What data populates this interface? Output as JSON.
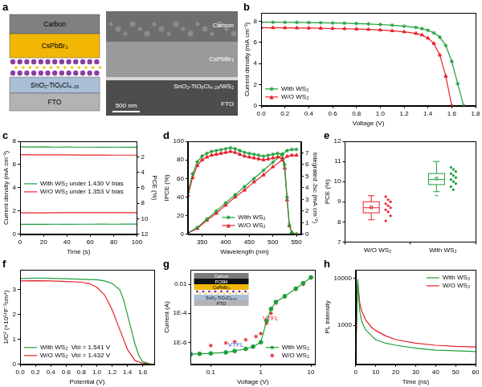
{
  "diagram": {
    "label": "a",
    "schematic_layers": [
      "Carbon",
      "CsPbBr₃",
      "SnO₂-TiOₓCl₄₋₂ₓ",
      "FTO"
    ],
    "sem_layers": [
      "Carbon",
      "CsPbBr₃",
      "SnO₂-TiOₓCl₄₋₂ₓ/WS₂",
      "FTO"
    ],
    "scale_bar": "500 nm"
  },
  "chart_data": [
    {
      "label": "b",
      "type": "line",
      "x_label": "Voltage (V)",
      "y_label": "Current density (mA cm⁻²)",
      "xlim": [
        0,
        1.8
      ],
      "xticks": [
        {
          "value": 0,
          "label": "0.0"
        },
        {
          "value": 0.2,
          "label": "0.2"
        },
        {
          "value": 0.4,
          "label": "0.4"
        },
        {
          "value": 0.6,
          "label": "0.6"
        },
        {
          "value": 0.8,
          "label": "0.8"
        },
        {
          "value": 1.0,
          "label": "1.0"
        },
        {
          "value": 1.2,
          "label": "1.2"
        },
        {
          "value": 1.4,
          "label": "1.4"
        },
        {
          "value": 1.6,
          "label": "1.6"
        },
        {
          "value": 1.8,
          "label": "1.8"
        }
      ],
      "ylim": [
        0,
        8.8
      ],
      "yticks": [
        0,
        2,
        4,
        6,
        8
      ],
      "grid": false,
      "legend": "lower left",
      "series": [
        {
          "name": "With WS₂",
          "color": "#1e9e3a",
          "marker": "star",
          "line_style": "solid",
          "x": [
            0,
            0.1,
            0.2,
            0.3,
            0.4,
            0.5,
            0.6,
            0.7,
            0.8,
            0.9,
            1.0,
            1.1,
            1.2,
            1.3,
            1.35,
            1.4,
            1.45,
            1.5,
            1.55,
            1.6,
            1.65,
            1.7
          ],
          "values": [
            7.92,
            7.91,
            7.9,
            7.89,
            7.88,
            7.86,
            7.84,
            7.82,
            7.79,
            7.75,
            7.7,
            7.63,
            7.54,
            7.42,
            7.3,
            7.15,
            6.9,
            6.5,
            5.7,
            4.2,
            2.1,
            0.0
          ]
        },
        {
          "name": "W/O WS₂",
          "color": "#e8202a",
          "marker": "triangle",
          "line_style": "solid",
          "x": [
            0,
            0.1,
            0.2,
            0.3,
            0.4,
            0.5,
            0.6,
            0.7,
            0.8,
            0.9,
            1.0,
            1.1,
            1.2,
            1.3,
            1.35,
            1.4,
            1.45,
            1.5,
            1.55,
            1.6
          ],
          "values": [
            7.4,
            7.39,
            7.38,
            7.37,
            7.36,
            7.34,
            7.32,
            7.3,
            7.27,
            7.23,
            7.18,
            7.1,
            7.0,
            6.85,
            6.7,
            6.4,
            5.9,
            4.8,
            2.8,
            0.0
          ]
        }
      ]
    },
    {
      "label": "c",
      "type": "line",
      "x_label": "Time (s)",
      "y_label": "Current density (mA cm⁻²)",
      "y2_label": "PCE (%)",
      "x": [
        0,
        10,
        20,
        30,
        40,
        50,
        60,
        70,
        80,
        90,
        100
      ],
      "xlim": [
        0,
        100
      ],
      "xticks": [
        0,
        20,
        40,
        60,
        80,
        100
      ],
      "ylim": [
        0,
        8
      ],
      "yticks": [
        0,
        2,
        4,
        6,
        8
      ],
      "y2lim": [
        12,
        0
      ],
      "y2ticks": [
        2,
        4,
        6,
        8,
        10,
        12
      ],
      "grid": false,
      "legend": "center left",
      "series": [
        {
          "name": "With WS₂ under 1.430 V bias",
          "color": "#1e9e3a",
          "line_style": "solid",
          "marker": "none",
          "values": [
            7.52,
            7.51,
            7.52,
            7.5,
            7.51,
            7.5,
            7.5,
            7.49,
            7.5,
            7.49,
            7.49
          ]
        },
        {
          "name": "W/O WS₂ under 1.353 V bias",
          "color": "#e8202a",
          "line_style": "solid",
          "marker": "none",
          "values": [
            6.85,
            6.84,
            6.84,
            6.83,
            6.83,
            6.82,
            6.82,
            6.82,
            6.81,
            6.81,
            6.81
          ]
        },
        {
          "name": "With WS₂ under 1.430 V bias",
          "color": "#1e9e3a",
          "line_style": "solid",
          "marker": "none",
          "axis": "y2",
          "values": [
            10.72,
            10.71,
            10.72,
            10.7,
            10.71,
            10.7,
            10.7,
            10.69,
            10.7,
            10.69,
            10.69
          ]
        },
        {
          "name": "W/O WS₂ under 1.353 V bias",
          "color": "#e8202a",
          "line_style": "solid",
          "marker": "none",
          "axis": "y2",
          "values": [
            9.24,
            9.23,
            9.23,
            9.22,
            9.22,
            9.21,
            9.21,
            9.21,
            9.2,
            9.2,
            9.2
          ]
        }
      ]
    },
    {
      "label": "d",
      "type": "line",
      "x_label": "Wavelength (nm)",
      "y_label": "IPCE (%)",
      "y2_label": "Integrated Jsc (mA cm⁻²)",
      "xlim": [
        320,
        560
      ],
      "xticks": [
        350,
        400,
        450,
        500,
        550
      ],
      "ylim": [
        0,
        100
      ],
      "yticks": [
        0,
        20,
        40,
        60,
        80,
        100
      ],
      "y2lim": [
        0,
        8
      ],
      "y2ticks": [
        0,
        1,
        2,
        3,
        4,
        5,
        6,
        7
      ],
      "grid": false,
      "legend": "lower center",
      "series": [
        {
          "name": "With WS₂",
          "color": "#1e9e3a",
          "marker": "star",
          "line_style": "solid",
          "x": [
            320,
            330,
            340,
            350,
            360,
            370,
            380,
            390,
            400,
            410,
            420,
            430,
            440,
            450,
            460,
            470,
            480,
            490,
            500,
            510,
            520,
            525,
            530,
            535,
            540,
            550
          ],
          "values": [
            45,
            65,
            78,
            84,
            87,
            89,
            90,
            91,
            92,
            93,
            92,
            90,
            88,
            87,
            86,
            85,
            84,
            85,
            86,
            87,
            86,
            75,
            40,
            10,
            2,
            0
          ]
        },
        {
          "name": "W/O WS₂",
          "color": "#e8202a",
          "marker": "triangle",
          "line_style": "solid",
          "x": [
            320,
            330,
            340,
            350,
            360,
            370,
            380,
            390,
            400,
            410,
            420,
            430,
            440,
            450,
            460,
            470,
            480,
            490,
            500,
            510,
            520,
            525,
            530,
            535,
            540,
            550
          ],
          "values": [
            42,
            61,
            74,
            80,
            83,
            85,
            86,
            87,
            88,
            89,
            88,
            86,
            84,
            83,
            82,
            81,
            80,
            81,
            82,
            83,
            82,
            71,
            37,
            9,
            2,
            0
          ]
        },
        {
          "name": "With WS₂",
          "color": "#1e9e3a",
          "marker": "star",
          "line_style": "solid",
          "axis": "y2",
          "x": [
            320,
            340,
            360,
            380,
            400,
            420,
            440,
            460,
            480,
            500,
            520,
            530,
            540,
            550
          ],
          "values": [
            0.1,
            0.6,
            1.3,
            2.0,
            2.7,
            3.4,
            4.1,
            4.8,
            5.5,
            6.2,
            6.9,
            7.2,
            7.3,
            7.3
          ]
        },
        {
          "name": "W/O WS₂",
          "color": "#e8202a",
          "marker": "triangle",
          "line_style": "solid",
          "axis": "y2",
          "x": [
            320,
            340,
            360,
            380,
            400,
            420,
            440,
            460,
            480,
            500,
            520,
            530,
            540,
            550
          ],
          "values": [
            0.1,
            0.5,
            1.2,
            1.8,
            2.5,
            3.2,
            3.8,
            4.5,
            5.1,
            5.8,
            6.4,
            6.7,
            6.8,
            6.8
          ]
        }
      ]
    },
    {
      "label": "e",
      "type": "box",
      "y_label": "PCE (%)",
      "categories": [
        "W/O WS₂",
        "With WS₂"
      ],
      "ylim": [
        7,
        12
      ],
      "yticks": [
        7,
        8,
        9,
        10,
        11,
        12
      ],
      "grid": false,
      "boxes": [
        {
          "color": "#e8202a",
          "whisker": [
            8.1,
            9.3
          ],
          "q1": 8.45,
          "q3": 9.0,
          "median": 8.7,
          "mean": 8.72,
          "points": [
            9.25,
            9.1,
            9.0,
            8.9,
            8.8,
            8.7,
            8.6,
            8.5,
            8.3,
            8.05
          ]
        },
        {
          "color": "#1e9e3a",
          "whisker": [
            9.5,
            11.0
          ],
          "q1": 9.85,
          "q3": 10.4,
          "median": 10.1,
          "mean": 10.15,
          "outliers": [
            9.3
          ],
          "points": [
            10.7,
            10.6,
            10.5,
            10.4,
            10.3,
            10.2,
            10.1,
            10.0,
            9.9,
            9.75,
            9.6
          ]
        }
      ]
    },
    {
      "label": "f",
      "type": "line",
      "x_label": "Potential (V)",
      "y_label": "1/C² (×10¹⁴F⁻²cm⁴)",
      "xlim": [
        0,
        1.75
      ],
      "xticks": [
        {
          "value": 0,
          "label": "0.0"
        },
        {
          "value": 0.2,
          "label": "0.2"
        },
        {
          "value": 0.4,
          "label": "0.4"
        },
        {
          "value": 0.6,
          "label": "0.6"
        },
        {
          "value": 0.8,
          "label": "0.8"
        },
        {
          "value": 1.0,
          "label": "1.0"
        },
        {
          "value": 1.2,
          "label": "1.2"
        },
        {
          "value": 1.4,
          "label": "1.4"
        },
        {
          "value": 1.6,
          "label": "1.6"
        }
      ],
      "ylim": [
        0,
        3.8
      ],
      "yticks": [
        0,
        1,
        2,
        3
      ],
      "grid": false,
      "legend": "lower left",
      "series": [
        {
          "name": "With WS₂  Vbi = 1.541 V",
          "color": "#1e9e3a",
          "line_style": "solid",
          "marker": "none",
          "x": [
            0,
            0.2,
            0.4,
            0.6,
            0.8,
            1.0,
            1.1,
            1.2,
            1.3,
            1.35,
            1.4,
            1.45,
            1.5,
            1.55,
            1.6,
            1.7
          ],
          "values": [
            3.45,
            3.47,
            3.46,
            3.44,
            3.42,
            3.4,
            3.35,
            3.25,
            3.0,
            2.6,
            2.0,
            1.4,
            0.8,
            0.35,
            0.1,
            0.02
          ]
        },
        {
          "name": "W/O WS₂  Vbi = 1.432 V",
          "color": "#e8202a",
          "line_style": "solid",
          "marker": "none",
          "x": [
            0,
            0.2,
            0.4,
            0.6,
            0.8,
            0.9,
            1.0,
            1.1,
            1.2,
            1.3,
            1.4,
            1.5,
            1.6,
            1.7
          ],
          "values": [
            3.35,
            3.36,
            3.35,
            3.33,
            3.3,
            3.25,
            3.1,
            2.8,
            2.2,
            1.4,
            0.6,
            0.15,
            0.05,
            0.02
          ]
        }
      ]
    },
    {
      "label": "g",
      "type": "line",
      "x_label": "Voltage (V)",
      "y_label": "Current (A)",
      "log": true,
      "xlim": [
        0.04,
        12
      ],
      "xticks": [
        0.1,
        1,
        10
      ],
      "ylim": [
        3e-08,
        0.1
      ],
      "yticks": [
        {
          "value": 1e-06,
          "label": "1E-6"
        },
        {
          "value": 0.0001,
          "label": "1E-4"
        },
        {
          "value": 0.01,
          "label": "0.01"
        }
      ],
      "grid": false,
      "legend": "lower right",
      "inset_layers": [
        "Carbon",
        "PCBM",
        "CsPbBr₃",
        "SnO₂-TiOₓCl₄₋₂ₓ",
        "FTO"
      ],
      "annotations": [
        {
          "text": "VTFL",
          "color": "#2f4fd8"
        },
        {
          "text": "VTFL",
          "color": "#e8202a"
        }
      ],
      "series": [
        {
          "name": "With WS₂",
          "color": "#1e9e3a",
          "line_style": "solid",
          "marker": "circle",
          "x": [
            0.04,
            0.06,
            0.1,
            0.2,
            0.3,
            0.5,
            0.7,
            1,
            1.3,
            1.6,
            2,
            3,
            5,
            7,
            10
          ],
          "values": [
            1.5e-07,
            1.6e-07,
            1.7e-07,
            2e-07,
            2.5e-07,
            3.5e-07,
            5e-07,
            1e-06,
            3e-05,
            0.0002,
            0.0006,
            0.0015,
            0.005,
            0.012,
            0.03
          ]
        },
        {
          "name": "W/O WS₂",
          "color": "#e8202a",
          "line_style": "none",
          "marker": "star",
          "x": [
            0.1,
            0.2,
            0.3,
            0.5,
            0.8,
            1,
            1.3,
            1.6,
            2,
            3,
            5,
            7,
            10
          ],
          "values": [
            6e-07,
            9e-07,
            1.1e-06,
            1.5e-06,
            2.5e-06,
            4e-06,
            2e-05,
            0.0001,
            0.0005,
            0.0014,
            0.0045,
            0.01,
            0.028
          ]
        }
      ]
    },
    {
      "label": "h",
      "type": "line",
      "x_label": "Time (ns)",
      "y_label": "PL intensity",
      "log": "y",
      "xlim": [
        0,
        60
      ],
      "xticks": [
        0,
        10,
        20,
        30,
        40,
        50,
        60
      ],
      "ylim": [
        150,
        15000
      ],
      "yticks": [
        1000,
        10000
      ],
      "grid": false,
      "legend": "upper right",
      "series": [
        {
          "name": "With WS₂",
          "color": "#1e9e3a",
          "line_style": "solid",
          "marker": "none",
          "x": [
            0,
            1,
            2,
            3,
            5,
            8,
            10,
            15,
            20,
            30,
            40,
            50,
            60
          ],
          "values": [
            260,
            9500,
            2000,
            1200,
            800,
            600,
            500,
            420,
            380,
            330,
            300,
            290,
            280
          ]
        },
        {
          "name": "W/O WS₂",
          "color": "#e8202a",
          "line_style": "solid",
          "marker": "none",
          "x": [
            0,
            1,
            2,
            3,
            5,
            8,
            10,
            15,
            20,
            30,
            40,
            50,
            60
          ],
          "values": [
            300,
            8000,
            3000,
            2000,
            1300,
            900,
            780,
            600,
            500,
            420,
            380,
            360,
            350
          ]
        }
      ]
    }
  ]
}
